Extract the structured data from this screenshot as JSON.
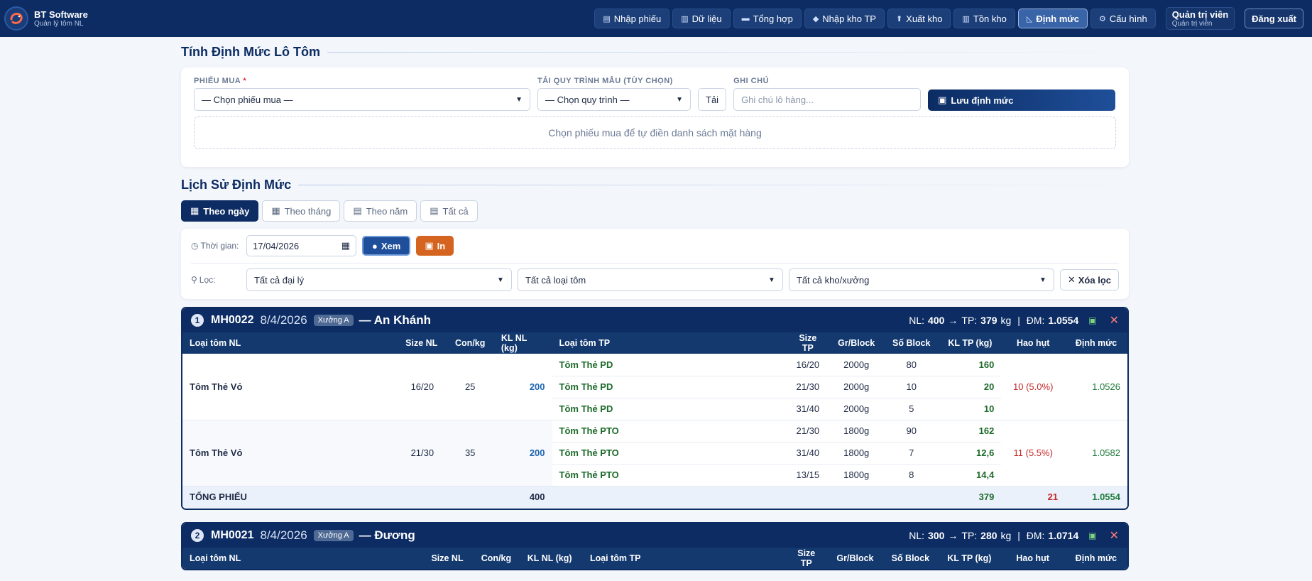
{
  "brand": {
    "title": "BT Software",
    "subtitle": "Quản lý tôm NL"
  },
  "nav": [
    {
      "label": "Nhập phiếu",
      "icon": "clipboard-icon"
    },
    {
      "label": "Dữ liệu",
      "icon": "chart-icon"
    },
    {
      "label": "Tổng hợp",
      "icon": "truck-icon"
    },
    {
      "label": "Nhập kho TP",
      "icon": "box-icon"
    },
    {
      "label": "Xuất kho",
      "icon": "upload-icon"
    },
    {
      "label": "Tồn kho",
      "icon": "stats-icon"
    },
    {
      "label": "Định mức",
      "icon": "ruler-icon",
      "active": true
    },
    {
      "label": "Cấu hình",
      "icon": "gear-icon"
    }
  ],
  "user": {
    "name": "Quản trị viên",
    "role": "Quản trị viên",
    "logout": "Đăng xuất"
  },
  "calc": {
    "title": "Tính Định Mức Lô Tôm",
    "phieu_label": "PHIẾU MUA",
    "phieu_required": "*",
    "phieu_value": "— Chọn phiếu mua —",
    "template_label": "TẢI QUY TRÌNH MẪU (TÙY CHỌN)",
    "template_value": "— Chọn quy trình —",
    "load_button": "Tải",
    "note_label": "GHI CHÚ",
    "note_placeholder": "Ghi chú lô hàng...",
    "save_button": "Lưu định mức",
    "hint": "Chọn phiếu mua để tự điền danh sách mặt hàng"
  },
  "history": {
    "title": "Lịch Sử Định Mức",
    "tabs": [
      {
        "label": "Theo ngày",
        "active": true
      },
      {
        "label": "Theo tháng"
      },
      {
        "label": "Theo năm"
      },
      {
        "label": "Tất cả"
      }
    ],
    "time_label": "Thời gian:",
    "date_value": "17/04/2026",
    "view_button": "Xem",
    "print_button": "In",
    "filter_label": "Lọc:",
    "filter_agent": "Tất cả đại lý",
    "filter_shrimp": "Tất cả loại tôm",
    "filter_warehouse": "Tất cả kho/xưởng",
    "clear_button": "Xóa lọc"
  },
  "columns": [
    "Loại tôm NL",
    "Size NL",
    "Con/kg",
    "KL NL (kg)",
    "Loại tôm TP",
    "Size TP",
    "Gr/Block",
    "Số Block",
    "KL TP (kg)",
    "Hao hụt",
    "Định mức"
  ],
  "records": [
    {
      "num": "1",
      "code": "MH0022",
      "date": "8/4/2026",
      "badge": "Xưởng A",
      "name": "— An Khánh",
      "nl_label": "NL:",
      "nl": "400",
      "tp_label": "TP:",
      "tp": "379",
      "unit": "kg",
      "dm_label": "ĐM:",
      "dm": "1.0554",
      "groups": [
        {
          "nl_name": "Tôm Thẻ Vỏ",
          "size": "16/20",
          "conkg": "25",
          "kl": "200",
          "loss": "10 (5.0%)",
          "dm": "1.0526",
          "items": [
            {
              "tp": "Tôm Thẻ PD",
              "size": "16/20",
              "gr": "2000g",
              "blocks": "80",
              "kl": "160"
            },
            {
              "tp": "Tôm Thẻ PD",
              "size": "21/30",
              "gr": "2000g",
              "blocks": "10",
              "kl": "20"
            },
            {
              "tp": "Tôm Thẻ PD",
              "size": "31/40",
              "gr": "2000g",
              "blocks": "5",
              "kl": "10"
            }
          ]
        },
        {
          "nl_name": "Tôm Thẻ Vỏ",
          "size": "21/30",
          "conkg": "35",
          "kl": "200",
          "loss": "11 (5.5%)",
          "dm": "1.0582",
          "items": [
            {
              "tp": "Tôm Thẻ PTO",
              "size": "21/30",
              "gr": "1800g",
              "blocks": "90",
              "kl": "162"
            },
            {
              "tp": "Tôm Thẻ PTO",
              "size": "31/40",
              "gr": "1800g",
              "blocks": "7",
              "kl": "12,6"
            },
            {
              "tp": "Tôm Thẻ PTO",
              "size": "13/15",
              "gr": "1800g",
              "blocks": "8",
              "kl": "14,4"
            }
          ]
        }
      ],
      "total": {
        "label": "TỔNG PHIẾU",
        "kl_nl": "400",
        "kl_tp": "379",
        "loss": "21",
        "dm": "1.0554"
      }
    },
    {
      "num": "2",
      "code": "MH0021",
      "date": "8/4/2026",
      "badge": "Xưởng A",
      "name": "— Đương",
      "nl_label": "NL:",
      "nl": "300",
      "tp_label": "TP:",
      "tp": "280",
      "unit": "kg",
      "dm_label": "ĐM:",
      "dm": "1.0714"
    }
  ]
}
